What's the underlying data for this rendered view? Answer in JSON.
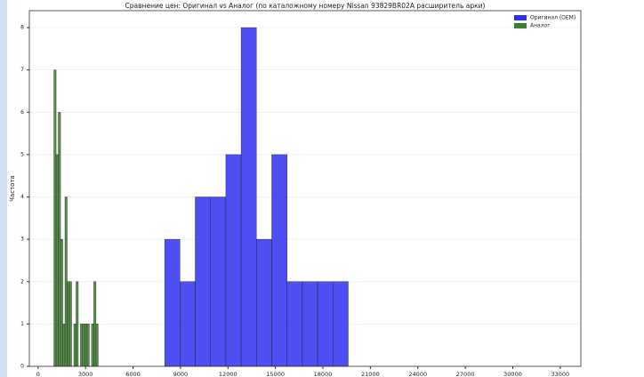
{
  "chart_data": {
    "type": "histogram",
    "title": "Сравнение цен: Оригинал vs Аналог (по каталожному номеру Nissan 93829BR02A расширитель арки)",
    "y_label": "Частота",
    "xlim": [
      -550,
      34300
    ],
    "xticks": [
      0,
      3000,
      6000,
      9000,
      12000,
      15000,
      18000,
      21000,
      24000,
      27000,
      30000,
      33000
    ],
    "ylim": [
      0,
      8.4
    ],
    "yticks": [
      0,
      1,
      2,
      3,
      4,
      5,
      6,
      7,
      8
    ],
    "grid": true,
    "legend": "upper right",
    "series": [
      {
        "name": "Оригинал (OEM)",
        "color": "#2f2ff0",
        "bins": [
          8000,
          8967,
          9933,
          10900,
          11867,
          12833,
          13800,
          14767,
          15733,
          16700,
          17667,
          18633,
          19600
        ],
        "values": [
          3,
          2,
          4,
          4,
          5,
          8,
          3,
          5,
          2,
          2,
          2,
          2
        ]
      },
      {
        "name": "Аналог",
        "color": "#3a7d2a",
        "bins": [
          1000,
          1140,
          1280,
          1420,
          1560,
          1700,
          1840,
          1980,
          2120,
          2260,
          2400,
          2540,
          2680,
          2820,
          2960,
          3100,
          3240,
          3380,
          3520,
          3660,
          3800
        ],
        "values": [
          7,
          5,
          6,
          3,
          1,
          4,
          2,
          2,
          0,
          1,
          2,
          0,
          1,
          1,
          1,
          1,
          0,
          1,
          2,
          1
        ]
      }
    ]
  }
}
